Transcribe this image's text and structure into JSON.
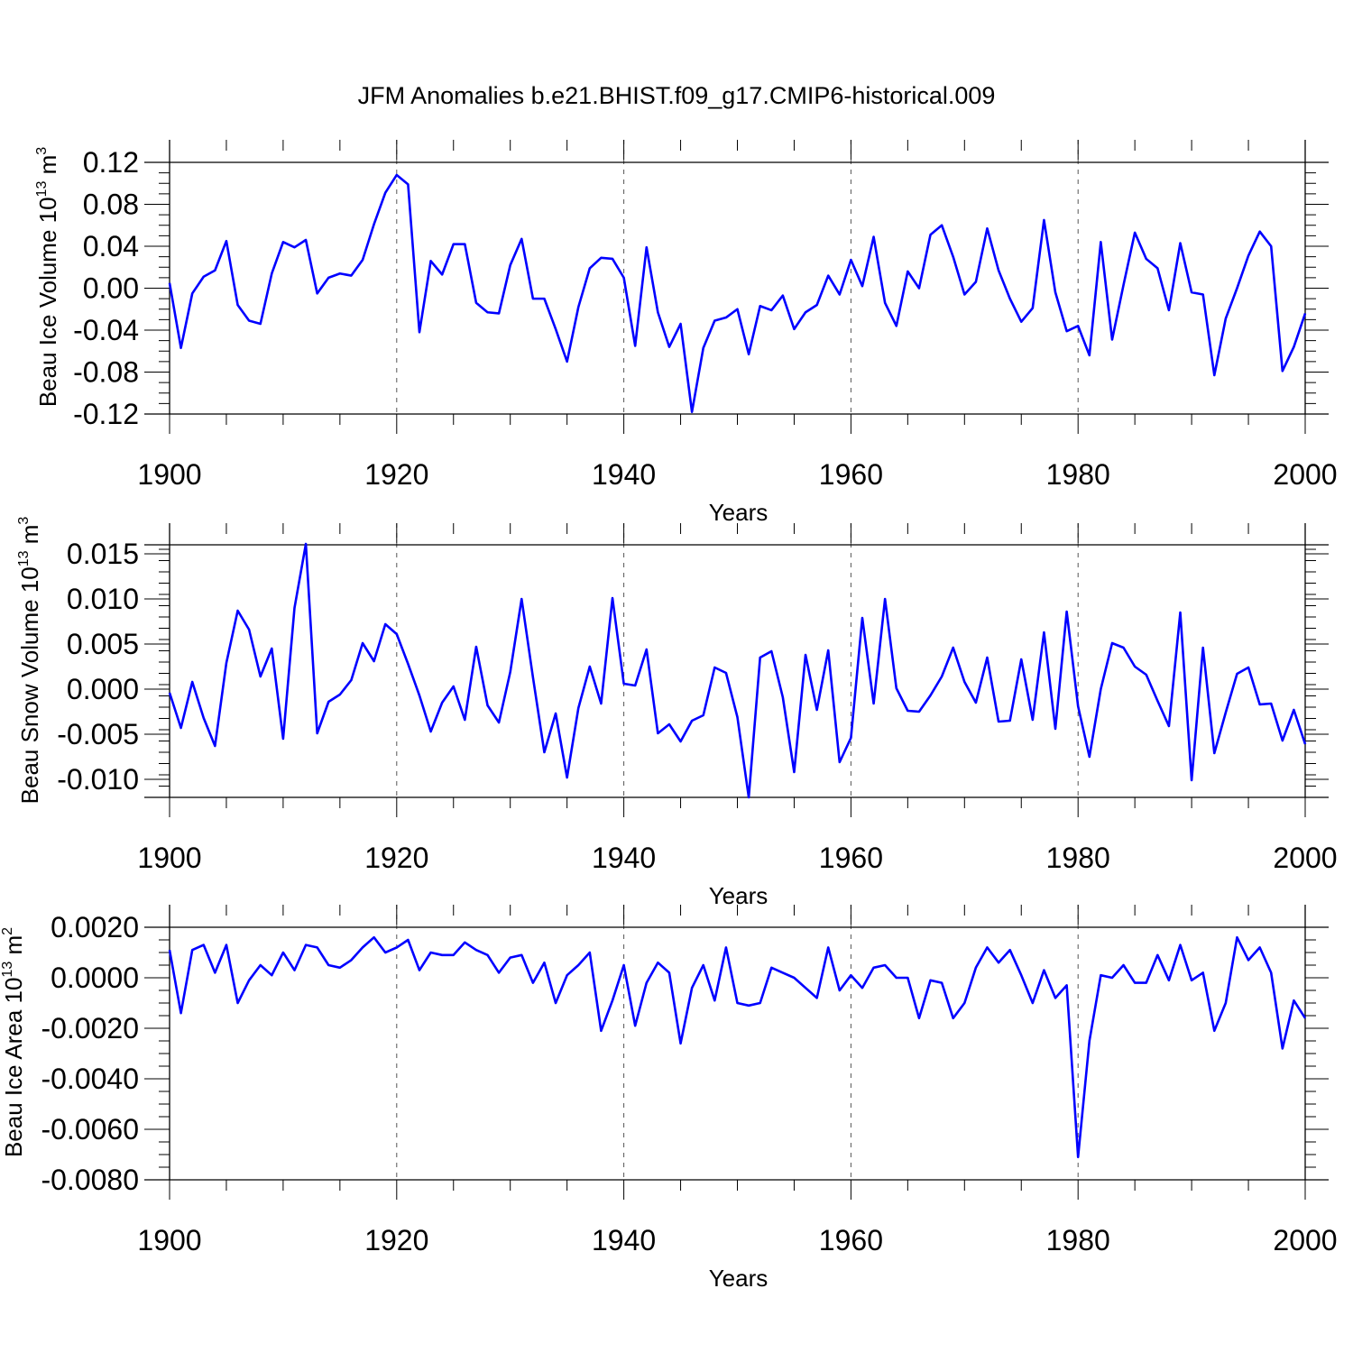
{
  "figure_title": "JFM Anomalies b.e21.BHIST.f09_g17.CMIP6-historical.009",
  "series_color": "#0000ff",
  "chart_data": [
    {
      "type": "line",
      "title": "",
      "xlabel": "Years",
      "ylabel": "Beau Ice Volume 10",
      "ylabel_exp": "13",
      "ylabel_unit": " m",
      "ylabel_unit_exp": "3",
      "xlim": [
        1900,
        2000
      ],
      "ylim": [
        -0.12,
        0.12
      ],
      "xticks": [
        1900,
        1920,
        1940,
        1960,
        1980,
        2000
      ],
      "xtick_labels": [
        "1900",
        "1920",
        "1940",
        "1960",
        "1980",
        "2000"
      ],
      "yticks": [
        -0.12,
        -0.08,
        -0.04,
        0.0,
        0.04,
        0.08,
        0.12
      ],
      "ytick_labels": [
        "-0.12",
        "-0.08",
        "-0.04",
        "0.00",
        "0.04",
        "0.08",
        "0.12"
      ],
      "grid_x": [
        1920,
        1940,
        1960,
        1980
      ],
      "x_start": 1900,
      "values": [
        0.005,
        -0.057,
        -0.005,
        0.011,
        0.017,
        0.045,
        -0.016,
        -0.031,
        -0.034,
        0.014,
        0.044,
        0.039,
        0.046,
        -0.005,
        0.01,
        0.014,
        0.012,
        0.027,
        0.061,
        0.091,
        0.108,
        0.099,
        -0.042,
        0.026,
        0.013,
        0.042,
        0.042,
        -0.014,
        -0.023,
        -0.024,
        0.022,
        0.047,
        -0.01,
        -0.01,
        -0.039,
        -0.07,
        -0.018,
        0.019,
        0.029,
        0.028,
        0.01,
        -0.055,
        0.039,
        -0.023,
        -0.056,
        -0.034,
        -0.118,
        -0.057,
        -0.031,
        -0.028,
        -0.02,
        -0.063,
        -0.017,
        -0.021,
        -0.007,
        -0.039,
        -0.023,
        -0.016,
        0.012,
        -0.006,
        0.027,
        0.002,
        0.049,
        -0.014,
        -0.036,
        0.016,
        0.0,
        0.051,
        0.06,
        0.03,
        -0.006,
        0.006,
        0.057,
        0.017,
        -0.01,
        -0.032,
        -0.019,
        0.065,
        -0.004,
        -0.041,
        -0.036,
        -0.064,
        0.044,
        -0.049,
        0.003,
        0.053,
        0.028,
        0.019,
        -0.021,
        0.043,
        -0.004,
        -0.006,
        -0.083,
        -0.029,
        0.0,
        0.031,
        0.054,
        0.04,
        -0.079,
        -0.056,
        -0.024
      ]
    },
    {
      "type": "line",
      "title": "",
      "xlabel": "Years",
      "ylabel": "Beau Snow Volume 10",
      "ylabel_exp": "13",
      "ylabel_unit": " m",
      "ylabel_unit_exp": "3",
      "xlim": [
        1900,
        2000
      ],
      "ylim": [
        -0.012,
        0.016
      ],
      "xticks": [
        1900,
        1920,
        1940,
        1960,
        1980,
        2000
      ],
      "xtick_labels": [
        "1900",
        "1920",
        "1940",
        "1960",
        "1980",
        "2000"
      ],
      "yticks": [
        -0.01,
        -0.005,
        0.0,
        0.005,
        0.01,
        0.015
      ],
      "ytick_labels": [
        "-0.010",
        "-0.005",
        "0.000",
        "0.005",
        "0.010",
        "0.015"
      ],
      "grid_x": [
        1920,
        1940,
        1960,
        1980
      ],
      "x_start": 1900,
      "values": [
        -0.0004,
        -0.0043,
        0.0008,
        -0.0032,
        -0.0063,
        0.0029,
        0.0087,
        0.0066,
        0.0014,
        0.0045,
        -0.0055,
        0.009,
        0.0161,
        -0.0049,
        -0.0014,
        -0.0006,
        0.001,
        0.0051,
        0.0031,
        0.0072,
        0.0061,
        0.0028,
        -0.0007,
        -0.0047,
        -0.0015,
        0.0003,
        -0.0034,
        0.0047,
        -0.0018,
        -0.0037,
        0.0019,
        0.01,
        0.0013,
        -0.007,
        -0.0027,
        -0.0098,
        -0.0021,
        0.0025,
        -0.0016,
        0.0101,
        0.0006,
        0.0004,
        0.0044,
        -0.0049,
        -0.0039,
        -0.0058,
        -0.0035,
        -0.0029,
        0.0024,
        0.0018,
        -0.0031,
        -0.012,
        0.0035,
        0.0042,
        -0.0009,
        -0.0092,
        0.0038,
        -0.0023,
        0.0043,
        -0.0081,
        -0.0054,
        0.0079,
        -0.0016,
        0.01,
        0.0001,
        -0.0024,
        -0.0025,
        -0.0007,
        0.0014,
        0.0046,
        0.0008,
        -0.0015,
        0.0035,
        -0.0036,
        -0.0035,
        0.0033,
        -0.0034,
        0.0063,
        -0.0044,
        0.0086,
        -0.0019,
        -0.0075,
        0.0,
        0.0051,
        0.0046,
        0.0025,
        0.0016,
        -0.0013,
        -0.0041,
        0.0085,
        -0.0101,
        0.0046,
        -0.0071,
        -0.0026,
        0.0017,
        0.0024,
        -0.0017,
        -0.0016,
        -0.0057,
        -0.0023,
        -0.0061
      ]
    },
    {
      "type": "line",
      "title": "",
      "xlabel": "Years",
      "ylabel": "Beau Ice Area 10",
      "ylabel_exp": "13",
      "ylabel_unit": " m",
      "ylabel_unit_exp": "2",
      "xlim": [
        1900,
        2000
      ],
      "ylim": [
        -0.008,
        0.002
      ],
      "xticks": [
        1900,
        1920,
        1940,
        1960,
        1980,
        2000
      ],
      "xtick_labels": [
        "1900",
        "1920",
        "1940",
        "1960",
        "1980",
        "2000"
      ],
      "yticks": [
        -0.008,
        -0.006,
        -0.004,
        -0.002,
        0.0,
        0.002
      ],
      "ytick_labels": [
        "-0.0080",
        "-0.0060",
        "-0.0040",
        "-0.0020",
        "0.0000",
        "0.0020"
      ],
      "grid_x": [
        1920,
        1940,
        1960,
        1980
      ],
      "x_start": 1900,
      "values": [
        0.0011,
        -0.0014,
        0.0011,
        0.0013,
        0.0002,
        0.0013,
        -0.001,
        -0.0001,
        0.0005,
        0.0001,
        0.001,
        0.0003,
        0.0013,
        0.0012,
        0.0005,
        0.0004,
        0.0007,
        0.0012,
        0.0016,
        0.001,
        0.0012,
        0.0015,
        0.0003,
        0.001,
        0.0009,
        0.0009,
        0.0014,
        0.0011,
        0.0009,
        0.0002,
        0.0008,
        0.0009,
        -0.0002,
        0.0006,
        -0.001,
        0.0001,
        0.0005,
        0.001,
        -0.0021,
        -0.0009,
        0.0005,
        -0.0019,
        -0.0002,
        0.0006,
        0.0002,
        -0.0026,
        -0.0004,
        0.0005,
        -0.0009,
        0.0012,
        -0.001,
        -0.0011,
        -0.001,
        0.0004,
        0.0002,
        0.0,
        -0.0004,
        -0.0008,
        0.0012,
        -0.0005,
        0.0001,
        -0.0004,
        0.0004,
        0.0005,
        0.0,
        0.0,
        -0.0016,
        -0.0001,
        -0.0002,
        -0.0016,
        -0.001,
        0.0004,
        0.0012,
        0.0006,
        0.0011,
        0.0001,
        -0.001,
        0.0003,
        -0.0008,
        -0.0003,
        -0.0071,
        -0.0025,
        0.0001,
        0.0,
        0.0005,
        -0.0002,
        -0.0002,
        0.0009,
        -0.0001,
        0.0013,
        -0.0001,
        0.0002,
        -0.0021,
        -0.001,
        0.0016,
        0.0007,
        0.0012,
        0.0002,
        -0.0028,
        -0.0009,
        -0.0016
      ]
    }
  ]
}
